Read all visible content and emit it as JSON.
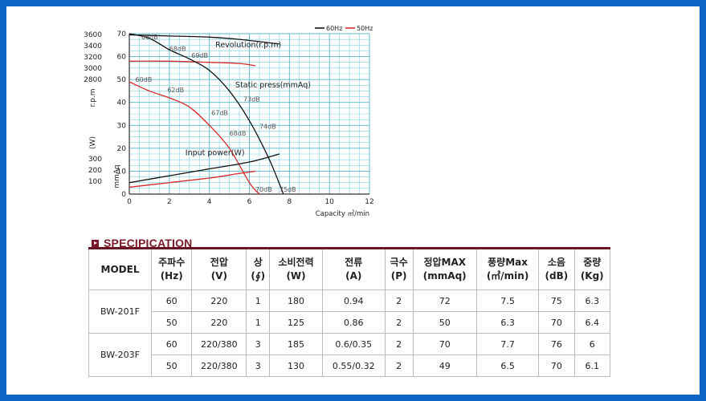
{
  "chart_data": {
    "type": "line",
    "x_axis": {
      "label": "Capacity ㎥/min",
      "ticks": [
        "0",
        "2",
        "4",
        "6",
        "8",
        "10",
        "12"
      ],
      "range": [
        0,
        12
      ]
    },
    "left_axes": {
      "rpm": {
        "label": "r.p.m",
        "ticks": [
          "3600",
          "3400",
          "3200",
          "3000",
          "2800"
        ]
      },
      "watt": {
        "label": "(W)",
        "ticks": [
          "300",
          "200",
          "100"
        ]
      },
      "mmaq": {
        "label": "mmAq",
        "ticks": [
          "70",
          "60",
          "50",
          "40",
          "30",
          "20",
          "10",
          "0"
        ],
        "range": [
          0,
          70
        ]
      }
    },
    "legend": {
      "placement": "top-right",
      "items": [
        "60Hz",
        "50Hz"
      ]
    },
    "series": [
      {
        "name": "60Hz",
        "color": "#111111",
        "curve": "Revolution (r.p.m)",
        "points": [
          [
            0,
            69.5
          ],
          [
            2,
            69
          ],
          [
            4,
            68.5
          ],
          [
            5.5,
            67.5
          ],
          [
            7.5,
            65.5
          ]
        ]
      },
      {
        "name": "50Hz",
        "color": "#d62b2b",
        "curve": "Revolution (r.p.m)",
        "points": [
          [
            0,
            58
          ],
          [
            2,
            58
          ],
          [
            4,
            57.5
          ],
          [
            5.5,
            57
          ],
          [
            6.3,
            56
          ]
        ]
      },
      {
        "name": "60Hz",
        "color": "#111111",
        "curve": "Static press (mmAq)",
        "points": [
          [
            0,
            70
          ],
          [
            1,
            68
          ],
          [
            2,
            63
          ],
          [
            3,
            59
          ],
          [
            4,
            54
          ],
          [
            5,
            45
          ],
          [
            6,
            32
          ],
          [
            7,
            15
          ],
          [
            7.7,
            0
          ]
        ]
      },
      {
        "name": "50Hz",
        "color": "#d62b2b",
        "curve": "Static press (mmAq)",
        "points": [
          [
            0,
            49
          ],
          [
            1,
            45
          ],
          [
            2,
            42
          ],
          [
            3,
            38
          ],
          [
            4,
            30
          ],
          [
            5,
            20
          ],
          [
            6,
            5
          ],
          [
            6.5,
            0
          ]
        ]
      },
      {
        "name": "60Hz",
        "color": "#111111",
        "curve": "Input power (W)",
        "points": [
          [
            0,
            5
          ],
          [
            2,
            8
          ],
          [
            4,
            11
          ],
          [
            6,
            14
          ],
          [
            7.5,
            17.5
          ]
        ]
      },
      {
        "name": "50Hz",
        "color": "#d62b2b",
        "curve": "Input power (W)",
        "points": [
          [
            0,
            3
          ],
          [
            2,
            5
          ],
          [
            4,
            7
          ],
          [
            5.5,
            9
          ],
          [
            6.3,
            10
          ]
        ]
      }
    ],
    "annotations": [
      {
        "text": "Revolution(r.p.m)",
        "x": 4.3,
        "y": 64
      },
      {
        "text": "Static press(mmAq)",
        "x": 5.3,
        "y": 46.5
      },
      {
        "text": "Input power(W)",
        "x": 2.8,
        "y": 17
      },
      {
        "text": "66dB",
        "x": 0.6,
        "y": 67.5
      },
      {
        "text": "68dB",
        "x": 2.0,
        "y": 62.5
      },
      {
        "text": "69dB",
        "x": 3.1,
        "y": 59.5
      },
      {
        "text": "73dB",
        "x": 5.7,
        "y": 40.5
      },
      {
        "text": "74dB",
        "x": 6.5,
        "y": 28.5
      },
      {
        "text": "75dB",
        "x": 7.5,
        "y": 1
      },
      {
        "text": "60dB",
        "x": 0.3,
        "y": 49
      },
      {
        "text": "62dB",
        "x": 1.9,
        "y": 44.5
      },
      {
        "text": "67dB",
        "x": 4.1,
        "y": 34.5
      },
      {
        "text": "68dB",
        "x": 5.0,
        "y": 25.5
      },
      {
        "text": "70dB",
        "x": 6.3,
        "y": 1
      }
    ]
  },
  "spec": {
    "title": "SPECIPICATION",
    "headers": [
      "MODEL",
      "주파수\n(Hz)",
      "전압\n(V)",
      "상\n(∮)",
      "소비전력\n(W)",
      "전류\n(A)",
      "극수\n(P)",
      "정압MAX\n(mmAq)",
      "풍량Max\n(㎥/min)",
      "소음\n(dB)",
      "중량\n(Kg)"
    ],
    "rows": [
      {
        "model": "BW-201F",
        "values": [
          [
            "60",
            "220",
            "1",
            "180",
            "0.94",
            "2",
            "72",
            "7.5",
            "75",
            "6.3"
          ],
          [
            "50",
            "220",
            "1",
            "125",
            "0.86",
            "2",
            "50",
            "6.3",
            "70",
            "6.4"
          ]
        ]
      },
      {
        "model": "BW-203F",
        "values": [
          [
            "60",
            "220/380",
            "3",
            "185",
            "0.6/0.35",
            "2",
            "70",
            "7.7",
            "76",
            "6"
          ],
          [
            "50",
            "220/380",
            "3",
            "130",
            "0.55/0.32",
            "2",
            "49",
            "6.5",
            "70",
            "6.1"
          ]
        ]
      }
    ]
  }
}
